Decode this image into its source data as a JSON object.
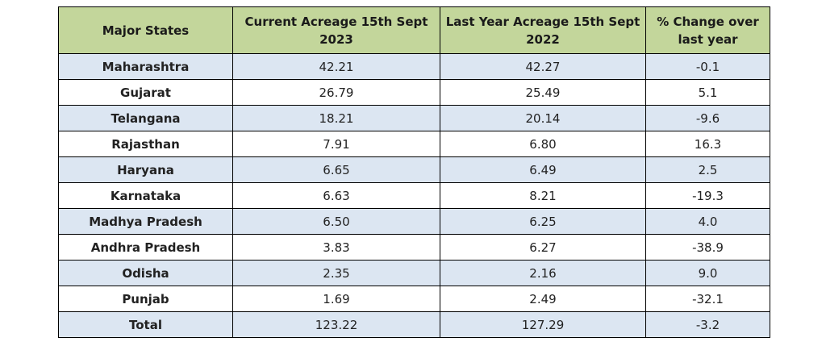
{
  "table": {
    "header": [
      "Major States",
      "Current Acreage 15th Sept 2023",
      "Last Year Acreage 15th Sept 2022",
      "% Change over last year"
    ],
    "rows": [
      [
        "Maharashtra",
        "42.21",
        "42.27",
        "-0.1"
      ],
      [
        "Gujarat",
        "26.79",
        "25.49",
        "5.1"
      ],
      [
        "Telangana",
        "18.21",
        "20.14",
        "-9.6"
      ],
      [
        "Rajasthan",
        "7.91",
        "6.80",
        "16.3"
      ],
      [
        "Haryana",
        "6.65",
        "6.49",
        "2.5"
      ],
      [
        "Karnataka",
        "6.63",
        "8.21",
        "-19.3"
      ],
      [
        "Madhya Pradesh",
        "6.50",
        "6.25",
        "4.0"
      ],
      [
        "Andhra Pradesh",
        "3.83",
        "6.27",
        "-38.9"
      ],
      [
        "Odisha",
        "2.35",
        "2.16",
        "9.0"
      ],
      [
        "Punjab",
        "1.69",
        "2.49",
        "-32.1"
      ],
      [
        "Total",
        "123.22",
        "127.29",
        "-3.2"
      ]
    ]
  }
}
